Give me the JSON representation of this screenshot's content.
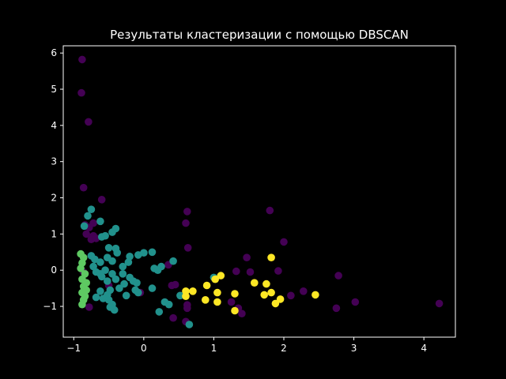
{
  "chart_data": {
    "type": "scatter",
    "title": "Результаты кластеризации с помощью DBSCAN",
    "xlabel": "",
    "ylabel": "",
    "xlim": [
      -1.15,
      4.45
    ],
    "ylim": [
      -1.85,
      6.2
    ],
    "xticks": [
      -1,
      0,
      1,
      2,
      3,
      4
    ],
    "yticks": [
      -1,
      0,
      1,
      2,
      3,
      4,
      5,
      6
    ],
    "grid": false,
    "colors": {
      "background": "#000000",
      "foreground": "#ffffff",
      "noise": "#440154",
      "cluster_a": "#21918c",
      "cluster_b": "#5ec962",
      "cluster_c": "#fde725"
    },
    "series": [
      {
        "color": "#440154",
        "points": [
          [
            -0.88,
            5.82
          ],
          [
            -0.89,
            4.9
          ],
          [
            -0.79,
            4.1
          ],
          [
            -0.86,
            2.28
          ],
          [
            -0.6,
            1.95
          ],
          [
            -0.84,
            1.25
          ],
          [
            -0.78,
            1.18
          ],
          [
            -0.82,
            1.0
          ],
          [
            -0.72,
            0.95
          ],
          [
            -0.75,
            0.85
          ],
          [
            -0.68,
            0.88
          ],
          [
            -0.72,
            1.3
          ],
          [
            -0.86,
            -0.05
          ],
          [
            -0.78,
            -1.02
          ],
          [
            -0.5,
            -0.42
          ],
          [
            0.62,
            1.62
          ],
          [
            0.6,
            1.3
          ],
          [
            0.63,
            0.62
          ],
          [
            0.35,
            0.15
          ],
          [
            0.4,
            -0.42
          ],
          [
            0.45,
            -0.4
          ],
          [
            0.62,
            -0.96
          ],
          [
            0.62,
            -1.05
          ],
          [
            0.42,
            -1.32
          ],
          [
            0.6,
            -1.42
          ],
          [
            1.25,
            -0.88
          ],
          [
            1.35,
            -1.05
          ],
          [
            1.4,
            -1.2
          ],
          [
            1.32,
            -0.03
          ],
          [
            1.47,
            0.35
          ],
          [
            1.52,
            -0.05
          ],
          [
            1.8,
            1.65
          ],
          [
            2.0,
            0.78
          ],
          [
            1.92,
            -0.02
          ],
          [
            2.1,
            -0.7
          ],
          [
            2.28,
            -0.58
          ],
          [
            2.78,
            -0.15
          ],
          [
            2.75,
            -1.05
          ],
          [
            3.02,
            -0.88
          ],
          [
            4.22,
            -0.92
          ],
          [
            -0.05,
            -0.62
          ]
        ]
      },
      {
        "color": "#21918c",
        "points": [
          [
            -0.75,
            1.68
          ],
          [
            -0.8,
            1.5
          ],
          [
            -0.85,
            1.22
          ],
          [
            -0.62,
            1.35
          ],
          [
            -0.45,
            1.05
          ],
          [
            -0.4,
            1.15
          ],
          [
            -0.55,
            0.95
          ],
          [
            -0.6,
            0.92
          ],
          [
            -0.5,
            0.62
          ],
          [
            -0.4,
            0.6
          ],
          [
            -0.38,
            0.48
          ],
          [
            -0.52,
            0.35
          ],
          [
            -0.45,
            0.25
          ],
          [
            -0.2,
            0.38
          ],
          [
            -0.22,
            0.22
          ],
          [
            -0.08,
            0.42
          ],
          [
            0.0,
            0.48
          ],
          [
            0.12,
            0.5
          ],
          [
            0.25,
            0.1
          ],
          [
            0.42,
            0.25
          ],
          [
            0.15,
            0.05
          ],
          [
            0.2,
            0.0
          ],
          [
            -0.75,
            0.4
          ],
          [
            -0.7,
            0.3
          ],
          [
            -0.62,
            0.22
          ],
          [
            -0.72,
            0.1
          ],
          [
            -0.68,
            -0.05
          ],
          [
            -0.62,
            -0.1
          ],
          [
            -0.55,
            0.0
          ],
          [
            -0.6,
            -0.18
          ],
          [
            -0.52,
            -0.3
          ],
          [
            -0.45,
            -0.1
          ],
          [
            -0.4,
            -0.25
          ],
          [
            -0.3,
            -0.1
          ],
          [
            -0.2,
            -0.2
          ],
          [
            -0.15,
            -0.3
          ],
          [
            -0.1,
            -0.35
          ],
          [
            -0.28,
            -0.38
          ],
          [
            -0.35,
            -0.5
          ],
          [
            -0.48,
            -0.55
          ],
          [
            -0.52,
            -0.68
          ],
          [
            -0.62,
            -0.58
          ],
          [
            -0.68,
            -0.75
          ],
          [
            -0.58,
            -0.78
          ],
          [
            -0.5,
            -0.82
          ],
          [
            -0.45,
            -0.95
          ],
          [
            -0.42,
            -1.1
          ],
          [
            -0.48,
            -1.02
          ],
          [
            -0.25,
            -0.7
          ],
          [
            -0.12,
            -0.55
          ],
          [
            -0.08,
            -0.62
          ],
          [
            0.12,
            -0.5
          ],
          [
            0.3,
            -0.88
          ],
          [
            0.36,
            -0.95
          ],
          [
            0.22,
            -1.15
          ],
          [
            0.52,
            -0.7
          ],
          [
            0.65,
            -1.5
          ],
          [
            1.0,
            -0.2
          ],
          [
            -0.3,
            0.1
          ]
        ]
      },
      {
        "color": "#5ec962",
        "points": [
          [
            -0.9,
            0.45
          ],
          [
            -0.86,
            0.35
          ],
          [
            -0.88,
            0.2
          ],
          [
            -0.9,
            0.05
          ],
          [
            -0.84,
            -0.1
          ],
          [
            -0.88,
            -0.25
          ],
          [
            -0.82,
            -0.35
          ],
          [
            -0.86,
            -0.45
          ],
          [
            -0.82,
            -0.55
          ],
          [
            -0.88,
            -0.62
          ],
          [
            -0.84,
            -0.72
          ],
          [
            -0.86,
            -0.82
          ],
          [
            -0.88,
            -0.95
          ]
        ]
      },
      {
        "color": "#fde725",
        "points": [
          [
            1.1,
            -0.15
          ],
          [
            1.02,
            -0.25
          ],
          [
            0.9,
            -0.42
          ],
          [
            0.6,
            -0.58
          ],
          [
            0.7,
            -0.58
          ],
          [
            0.6,
            -0.72
          ],
          [
            0.88,
            -0.82
          ],
          [
            1.05,
            -0.62
          ],
          [
            1.05,
            -0.88
          ],
          [
            1.3,
            -0.65
          ],
          [
            1.3,
            -1.12
          ],
          [
            1.58,
            -0.35
          ],
          [
            1.75,
            -0.38
          ],
          [
            1.72,
            -0.68
          ],
          [
            1.82,
            -0.62
          ],
          [
            1.88,
            -0.92
          ],
          [
            1.95,
            -0.8
          ],
          [
            2.45,
            -0.68
          ],
          [
            1.82,
            0.35
          ]
        ]
      }
    ]
  }
}
